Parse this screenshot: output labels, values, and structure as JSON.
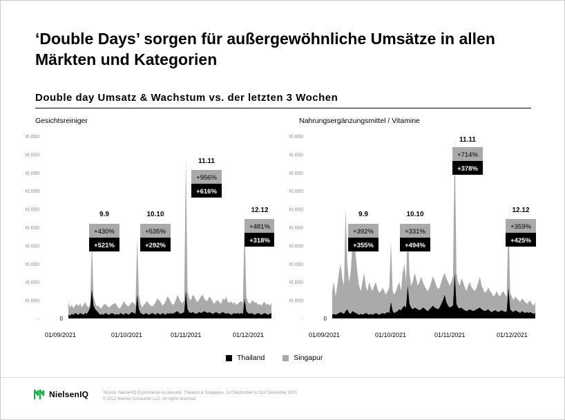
{
  "title": "‘Double Days’ sorgen für außergewöhnliche Umsätze in allen Märkten und Kategorien",
  "subtitle": "Double day Umsatz & Wachstum vs. der letzten 3  Wochen",
  "colors": {
    "thailand": "#000000",
    "singapur": "#aaaaaa"
  },
  "legend": [
    {
      "name": "Thailand",
      "color": "#000000"
    },
    {
      "name": "Singapur",
      "color": "#aaaaaa"
    }
  ],
  "footer": {
    "logo_text": "NielsenIQ",
    "source_line1": "Source: NielsenIQ Ecommerce Accelerator, Thailand & Singapore, 1st September to 31st December 2021",
    "source_line2": "© 2022 Nielsen Consumer LLC. All rights reserved."
  },
  "chart_data": [
    {
      "type": "area",
      "title": "Gesichtsreiniger",
      "ylim": [
        0,
        1000000
      ],
      "yticks": [
        "-",
        "100.000",
        "200.000",
        "300.000",
        "400.000",
        "500.000",
        "600.000",
        "700.000",
        "800.000",
        "900.000",
        "1.000.000"
      ],
      "zero_label": "0",
      "xticks": [
        "01/09/2021",
        "01/10/2021",
        "01/11/2021",
        "01/12/2021"
      ],
      "series": [
        {
          "name": "Singapur",
          "color": "#aaaaaa",
          "values": [
            90000,
            60000,
            75000,
            55000,
            70000,
            80000,
            65000,
            85000,
            60000,
            75000,
            90000,
            70000,
            60000,
            80000,
            420000,
            120000,
            85000,
            65000,
            70000,
            55000,
            60000,
            75000,
            80000,
            70000,
            60000,
            65000,
            75000,
            80000,
            85000,
            70000,
            55000,
            60000,
            75000,
            95000,
            80000,
            70000,
            65000,
            80000,
            90000,
            85000,
            70000,
            440000,
            130000,
            80000,
            60000,
            75000,
            85000,
            95000,
            80000,
            70000,
            65000,
            75000,
            90000,
            110000,
            100000,
            90000,
            70000,
            80000,
            95000,
            120000,
            110000,
            90000,
            75000,
            80000,
            100000,
            130000,
            110000,
            90000,
            85000,
            100000,
            880000,
            150000,
            110000,
            100000,
            130000,
            120000,
            100000,
            90000,
            105000,
            120000,
            130000,
            110000,
            95000,
            100000,
            120000,
            110000,
            90000,
            80000,
            95000,
            100000,
            90000,
            80000,
            110000,
            100000,
            120000,
            90000,
            85000,
            95000,
            80000,
            90000,
            75000,
            80000,
            90000,
            95000,
            85000,
            530000,
            120000,
            90000,
            80000,
            90000,
            100000,
            85000,
            90000,
            75000,
            80000,
            70000,
            85000,
            90000,
            75000,
            80000,
            70000,
            85000
          ]
        },
        {
          "name": "Thailand",
          "color": "#000000",
          "values": [
            20000,
            15000,
            25000,
            20000,
            30000,
            25000,
            20000,
            30000,
            25000,
            20000,
            30000,
            25000,
            40000,
            60000,
            160000,
            70000,
            50000,
            40000,
            30000,
            20000,
            25000,
            20000,
            30000,
            25000,
            20000,
            25000,
            30000,
            25000,
            20000,
            25000,
            20000,
            30000,
            25000,
            20000,
            30000,
            25000,
            20000,
            30000,
            35000,
            30000,
            25000,
            130000,
            50000,
            30000,
            25000,
            20000,
            30000,
            25000,
            20000,
            25000,
            30000,
            25000,
            20000,
            30000,
            25000,
            20000,
            30000,
            25000,
            20000,
            30000,
            25000,
            30000,
            25000,
            30000,
            35000,
            40000,
            30000,
            25000,
            30000,
            35000,
            150000,
            50000,
            35000,
            30000,
            35000,
            30000,
            25000,
            30000,
            35000,
            30000,
            35000,
            40000,
            35000,
            30000,
            35000,
            30000,
            25000,
            30000,
            35000,
            30000,
            25000,
            30000,
            35000,
            30000,
            25000,
            30000,
            25000,
            20000,
            25000,
            30000,
            25000,
            30000,
            25000,
            30000,
            25000,
            110000,
            40000,
            30000,
            25000,
            30000,
            25000,
            20000,
            25000,
            30000,
            25000,
            20000,
            25000,
            30000,
            25000,
            20000,
            25000,
            30000
          ]
        }
      ],
      "annotations": [
        {
          "label": "9.9",
          "singapur": "+430%",
          "thailand": "+521%"
        },
        {
          "label": "10.10",
          "singapur": "+535%",
          "thailand": "+292%"
        },
        {
          "label": "11.11",
          "singapur": "+956%",
          "thailand": "+616%"
        },
        {
          "label": "12.12",
          "singapur": "+481%",
          "thailand": "+318%"
        }
      ]
    },
    {
      "type": "area",
      "title": "Nahrungsergänzungsmittel / Vitamine",
      "ylim": [
        0,
        1000000
      ],
      "yticks": [
        "-",
        "100.000",
        "200.000",
        "300.000",
        "400.000",
        "500.000",
        "600.000",
        "700.000",
        "800.000",
        "900.000",
        "1.000.000"
      ],
      "zero_label": "0",
      "xticks": [
        "01/09/2021",
        "01/10/2021",
        "01/11/2021",
        "01/12/2021"
      ],
      "series": [
        {
          "name": "Singapur",
          "color": "#aaaaaa",
          "values": [
            150000,
            200000,
            120000,
            180000,
            250000,
            300000,
            220000,
            180000,
            600000,
            300000,
            200000,
            250000,
            400000,
            500000,
            350000,
            250000,
            180000,
            150000,
            200000,
            250000,
            180000,
            150000,
            200000,
            170000,
            150000,
            180000,
            200000,
            160000,
            140000,
            150000,
            170000,
            150000,
            130000,
            150000,
            170000,
            420000,
            150000,
            130000,
            150000,
            180000,
            200000,
            150000,
            250000,
            300000,
            200000,
            530000,
            250000,
            180000,
            200000,
            250000,
            220000,
            180000,
            200000,
            230000,
            200000,
            180000,
            160000,
            150000,
            170000,
            200000,
            230000,
            210000,
            180000,
            160000,
            170000,
            200000,
            230000,
            250000,
            220000,
            200000,
            180000,
            200000,
            230000,
            1000000,
            250000,
            200000,
            180000,
            220000,
            200000,
            170000,
            150000,
            180000,
            200000,
            170000,
            160000,
            150000,
            170000,
            200000,
            230000,
            180000,
            160000,
            140000,
            150000,
            170000,
            150000,
            140000,
            120000,
            130000,
            150000,
            130000,
            120000,
            140000,
            150000,
            130000,
            120000,
            570000,
            140000,
            120000,
            100000,
            120000,
            110000,
            100000,
            90000,
            110000,
            100000,
            90000,
            80000,
            90000,
            100000,
            80000,
            70000,
            90000
          ]
        },
        {
          "name": "Thailand",
          "color": "#000000",
          "values": [
            20000,
            25000,
            20000,
            25000,
            30000,
            35000,
            30000,
            25000,
            40000,
            50000,
            30000,
            25000,
            40000,
            35000,
            30000,
            25000,
            20000,
            25000,
            20000,
            25000,
            30000,
            25000,
            20000,
            25000,
            20000,
            25000,
            30000,
            25000,
            20000,
            25000,
            30000,
            25000,
            30000,
            35000,
            30000,
            90000,
            40000,
            30000,
            35000,
            40000,
            50000,
            45000,
            60000,
            70000,
            60000,
            180000,
            80000,
            60000,
            50000,
            60000,
            55000,
            50000,
            45000,
            50000,
            60000,
            55000,
            45000,
            40000,
            50000,
            60000,
            70000,
            60000,
            55000,
            50000,
            60000,
            80000,
            100000,
            130000,
            90000,
            70000,
            60000,
            65000,
            70000,
            250000,
            80000,
            60000,
            55000,
            60000,
            50000,
            45000,
            40000,
            45000,
            50000,
            45000,
            40000,
            45000,
            50000,
            55000,
            60000,
            50000,
            45000,
            40000,
            45000,
            50000,
            40000,
            35000,
            40000,
            45000,
            40000,
            35000,
            40000,
            45000,
            40000,
            35000,
            40000,
            170000,
            50000,
            40000,
            35000,
            45000,
            40000,
            35000,
            30000,
            40000,
            35000,
            30000,
            35000,
            30000,
            35000,
            30000,
            25000,
            30000
          ]
        }
      ],
      "annotations": [
        {
          "label": "9.9",
          "singapur": "+392%",
          "thailand": "+355%"
        },
        {
          "label": "10.10",
          "singapur": "+331%",
          "thailand": "+494%"
        },
        {
          "label": "11.11",
          "singapur": "+714%",
          "thailand": "+378%"
        },
        {
          "label": "12.12",
          "singapur": "+359%",
          "thailand": "+425%"
        }
      ]
    }
  ]
}
